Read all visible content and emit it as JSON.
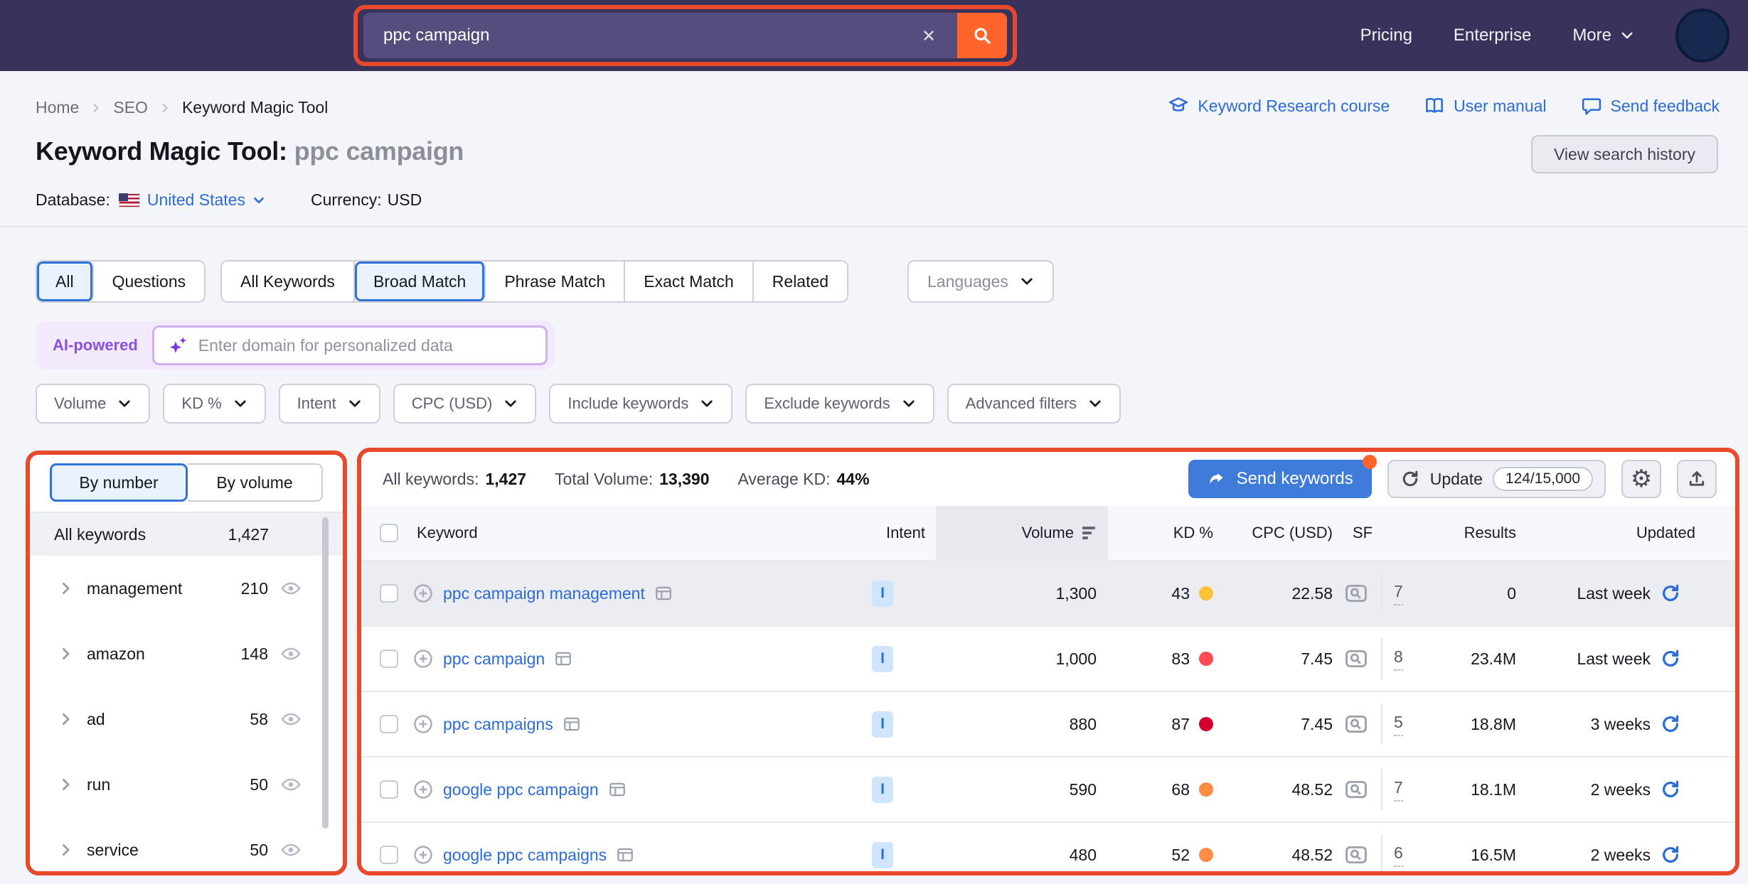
{
  "colors": {
    "topbar_bg": "#39335b",
    "accent_orange": "#ff642d",
    "annotation": "#e8492b",
    "link_blue": "#2b6cd9",
    "kd_yellow": "#fdc23c",
    "kd_orange": "#ff8c43",
    "kd_red": "#ff4953",
    "kd_dark_red": "#d1002f"
  },
  "topbar": {
    "search_value": "ppc campaign",
    "nav": [
      "Pricing",
      "Enterprise",
      "More"
    ]
  },
  "header": {
    "breadcrumb": [
      "Home",
      "SEO",
      "Keyword Magic Tool"
    ],
    "links": [
      {
        "label": "Keyword Research course",
        "icon": "course-icon"
      },
      {
        "label": "User manual",
        "icon": "book-icon"
      },
      {
        "label": "Send feedback",
        "icon": "feedback-icon"
      }
    ],
    "title_prefix": "Keyword Magic Tool:",
    "title_query": "ppc campaign",
    "database_label": "Database:",
    "database_value": "United States",
    "currency_label": "Currency:",
    "currency_value": "USD",
    "history_button": "View search history"
  },
  "tabs": {
    "scope": [
      {
        "label": "All",
        "active": true
      },
      {
        "label": "Questions",
        "active": false
      }
    ],
    "match": [
      {
        "label": "All Keywords",
        "active": false
      },
      {
        "label": "Broad Match",
        "active": true
      },
      {
        "label": "Phrase Match",
        "active": false
      },
      {
        "label": "Exact Match",
        "active": false
      },
      {
        "label": "Related",
        "active": false
      }
    ],
    "languages_label": "Languages"
  },
  "ai": {
    "badge": "AI-powered",
    "placeholder": "Enter domain for personalized data"
  },
  "filters": [
    "Volume",
    "KD %",
    "Intent",
    "CPC (USD)",
    "Include keywords",
    "Exclude keywords",
    "Advanced filters"
  ],
  "sidebar": {
    "toggle": [
      {
        "label": "By number",
        "active": true
      },
      {
        "label": "By volume",
        "active": false
      }
    ],
    "all_keywords_label": "All keywords",
    "all_keywords_count": "1,427",
    "groups": [
      {
        "name": "management",
        "count": "210"
      },
      {
        "name": "amazon",
        "count": "148"
      },
      {
        "name": "ad",
        "count": "58"
      },
      {
        "name": "run",
        "count": "50"
      },
      {
        "name": "service",
        "count": "50"
      }
    ]
  },
  "main": {
    "stats": [
      {
        "label": "All keywords:",
        "value": "1,427"
      },
      {
        "label": "Total Volume:",
        "value": "13,390"
      },
      {
        "label": "Average KD:",
        "value": "44%"
      }
    ],
    "send_keywords_label": "Send keywords",
    "update_label": "Update",
    "update_quota": "124/15,000",
    "table": {
      "columns": [
        "Keyword",
        "Intent",
        "Volume",
        "KD %",
        "CPC (USD)",
        "SF",
        "Results",
        "Updated"
      ],
      "rows": [
        {
          "keyword": "ppc campaign management",
          "intent": "I",
          "volume": "1,300",
          "kd": "43",
          "kd_color": "#fdc23c",
          "cpc": "22.58",
          "sf": "7",
          "results": "0",
          "updated": "Last week",
          "highlighted": true
        },
        {
          "keyword": "ppc campaign",
          "intent": "I",
          "volume": "1,000",
          "kd": "83",
          "kd_color": "#ff4953",
          "cpc": "7.45",
          "sf": "8",
          "results": "23.4M",
          "updated": "Last week",
          "highlighted": false
        },
        {
          "keyword": "ppc campaigns",
          "intent": "I",
          "volume": "880",
          "kd": "87",
          "kd_color": "#d1002f",
          "cpc": "7.45",
          "sf": "5",
          "results": "18.8M",
          "updated": "3 weeks",
          "highlighted": false
        },
        {
          "keyword": "google ppc campaign",
          "intent": "I",
          "volume": "590",
          "kd": "68",
          "kd_color": "#ff8c43",
          "cpc": "48.52",
          "sf": "7",
          "results": "18.1M",
          "updated": "2 weeks",
          "highlighted": false
        },
        {
          "keyword": "google ppc campaigns",
          "intent": "I",
          "volume": "480",
          "kd": "52",
          "kd_color": "#ff8c43",
          "cpc": "48.52",
          "sf": "6",
          "results": "16.5M",
          "updated": "2 weeks",
          "highlighted": false
        }
      ]
    }
  }
}
